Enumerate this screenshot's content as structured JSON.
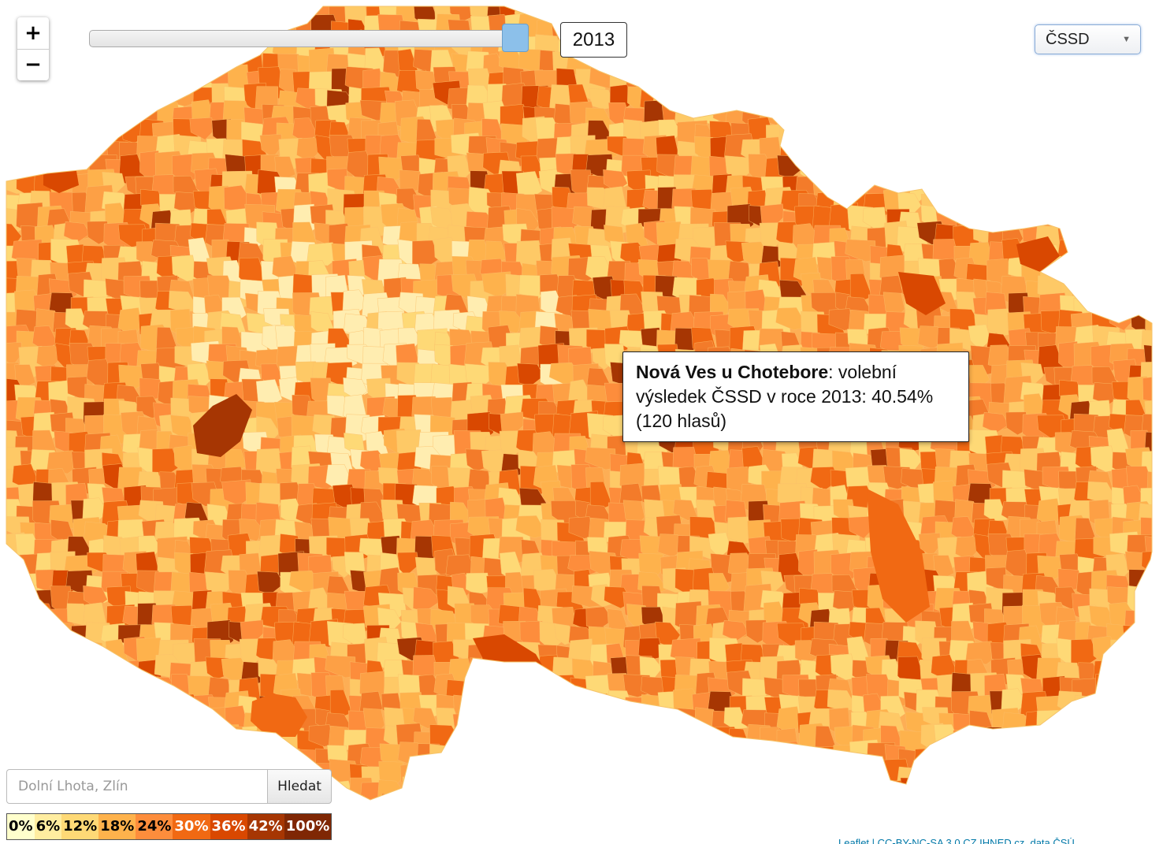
{
  "map": {
    "name": "Czech Republic municipalities choropleth"
  },
  "zoom": {
    "in_label": "+",
    "out_label": "−"
  },
  "year_slider": {
    "value": 2013,
    "min": 1996,
    "max": 2013
  },
  "year_display": "2013",
  "party_select": {
    "selected": "ČSSD"
  },
  "tooltip": {
    "place": "Nová Ves u Chotebore",
    "text": ": volební výsledek ČSSD v roce 2013: 40.54% (120 hlasů)"
  },
  "search": {
    "placeholder": "Dolní Lhota, Zlín",
    "button_label": "Hledat"
  },
  "legend": {
    "items": [
      {
        "label": "0%",
        "color": "#ffffcc",
        "text_color": "#000000"
      },
      {
        "label": "6%",
        "color": "#ffeda0",
        "text_color": "#000000"
      },
      {
        "label": "12%",
        "color": "#fed976",
        "text_color": "#000000"
      },
      {
        "label": "18%",
        "color": "#feb24c",
        "text_color": "#000000"
      },
      {
        "label": "24%",
        "color": "#fd8d3c",
        "text_color": "#000000"
      },
      {
        "label": "30%",
        "color": "#f16913",
        "text_color": "#ffffff"
      },
      {
        "label": "36%",
        "color": "#d94801",
        "text_color": "#ffffff"
      },
      {
        "label": "42%",
        "color": "#a63603",
        "text_color": "#ffffff"
      },
      {
        "label": "100%",
        "color": "#7f2704",
        "text_color": "#ffffff"
      }
    ]
  },
  "attribution": "Leaflet | CC-BY-NC-SA 3.0 CZ IHNED.cz, data ČSÚ",
  "colors": {
    "map_palette": [
      "#ffedb0",
      "#fed976",
      "#fec966",
      "#feb24c",
      "#fda045",
      "#fd8d3c",
      "#f37b2a",
      "#f16913",
      "#d94801",
      "#a63603"
    ]
  }
}
